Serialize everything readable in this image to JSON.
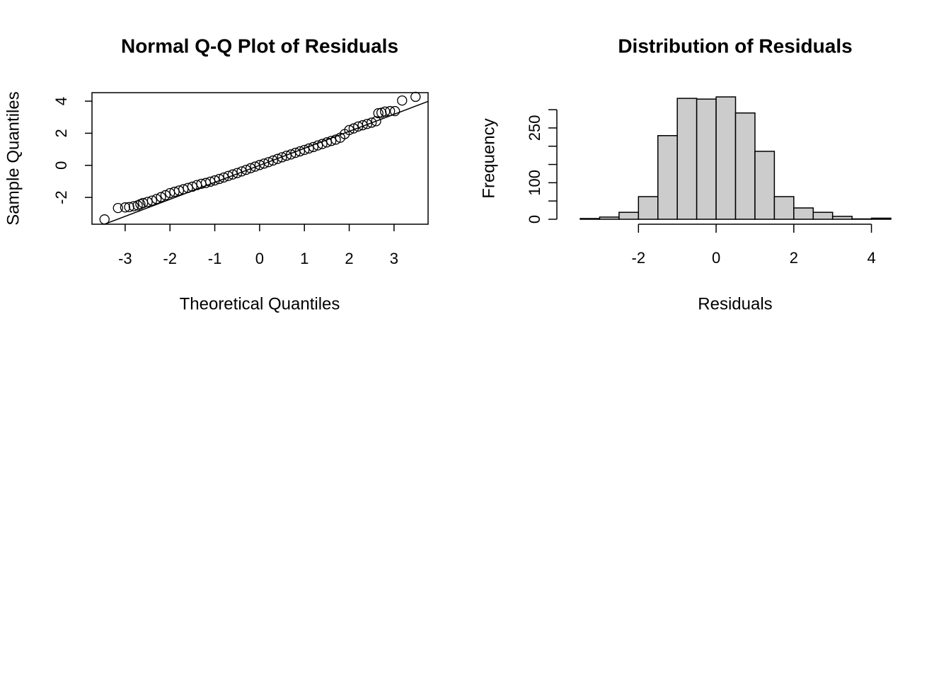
{
  "chart_data": [
    {
      "type": "scatter",
      "title": "Normal Q-Q Plot of Residuals",
      "xlabel": "Theoretical Quantiles",
      "ylabel": "Sample Quantiles",
      "x": [
        -3.46,
        -3.16,
        -3.0,
        -2.91,
        -2.81,
        -2.72,
        -2.66,
        -2.6,
        -2.5,
        -2.4,
        -2.3,
        -2.2,
        -2.1,
        -2.0,
        -1.9,
        -1.8,
        -1.7,
        -1.6,
        -1.5,
        -1.4,
        -1.3,
        -1.2,
        -1.1,
        -1.0,
        -0.9,
        -0.8,
        -0.7,
        -0.6,
        -0.5,
        -0.4,
        -0.3,
        -0.2,
        -0.1,
        0,
        0.1,
        0.2,
        0.3,
        0.4,
        0.5,
        0.6,
        0.7,
        0.8,
        0.9,
        1.0,
        1.1,
        1.2,
        1.3,
        1.4,
        1.5,
        1.6,
        1.7,
        1.8,
        1.9,
        2.0,
        2.1,
        2.2,
        2.3,
        2.4,
        2.5,
        2.6,
        2.65,
        2.72,
        2.8,
        2.91,
        3.02,
        3.18,
        3.48
      ],
      "values": [
        -3.37,
        -2.66,
        -2.62,
        -2.6,
        -2.55,
        -2.5,
        -2.42,
        -2.35,
        -2.28,
        -2.2,
        -2.1,
        -1.98,
        -1.86,
        -1.73,
        -1.65,
        -1.57,
        -1.49,
        -1.41,
        -1.33,
        -1.23,
        -1.15,
        -1.1,
        -1.02,
        -0.94,
        -0.85,
        -0.76,
        -0.66,
        -0.57,
        -0.48,
        -0.38,
        -0.28,
        -0.18,
        -0.08,
        0.02,
        0.11,
        0.2,
        0.3,
        0.4,
        0.5,
        0.6,
        0.68,
        0.78,
        0.87,
        0.96,
        1.05,
        1.14,
        1.24,
        1.33,
        1.43,
        1.52,
        1.6,
        1.72,
        1.95,
        2.2,
        2.3,
        2.42,
        2.5,
        2.58,
        2.66,
        2.75,
        3.25,
        3.28,
        3.35,
        3.38,
        3.38,
        4.04,
        4.27
      ],
      "ref_line": {
        "intercept": 0,
        "slope": 1.06
      },
      "color": "#000000",
      "xlim": [
        -3.74,
        3.76
      ],
      "ylim": [
        -3.67,
        4.53
      ],
      "xticks": [
        -3,
        -2,
        -1,
        0,
        1,
        2,
        3
      ],
      "yticks": [
        -2,
        0,
        2,
        4
      ]
    },
    {
      "type": "histogram",
      "title": "Distribution of Residuals",
      "xlabel": "Residuals",
      "ylabel": "Frequency",
      "bins": [
        -3.5,
        -3.0,
        -2.5,
        -2.0,
        -1.5,
        -1.0,
        -0.5,
        0,
        0.5,
        1.0,
        1.5,
        2.0,
        2.5,
        3.0,
        3.5,
        4.0,
        4.5
      ],
      "values": [
        2,
        6,
        19,
        62,
        229,
        331,
        329,
        335,
        291,
        186,
        62,
        31,
        19,
        8,
        1,
        3
      ],
      "color": "#cccccc",
      "xlim": [
        -3.5,
        4.5
      ],
      "ylim": [
        0,
        335
      ],
      "xticks": [
        -2,
        0,
        2,
        4
      ],
      "yticks": [
        0,
        100,
        250
      ],
      "yticks_unlabeled": [
        50,
        150,
        200,
        300
      ]
    }
  ]
}
